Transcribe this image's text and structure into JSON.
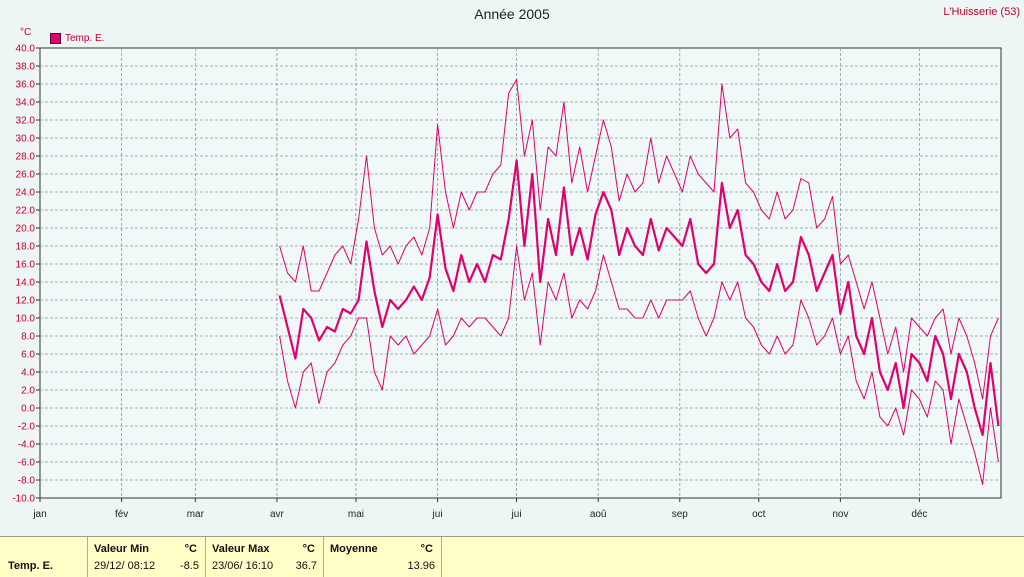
{
  "title": "Année 2005",
  "station": "L'Huisserie (53)",
  "unit": "°C",
  "legend": [
    {
      "name": "Temp. E.",
      "color": "#e0006e"
    }
  ],
  "chart_data": {
    "type": "line",
    "title": "Année 2005",
    "ylabel": "°C",
    "ylim": [
      -10,
      40
    ],
    "ytick_step": 2,
    "xlim": [
      0,
      365
    ],
    "grid": true,
    "legend_position": "top-left",
    "x_ticks": [
      {
        "label": "jan",
        "day": 0
      },
      {
        "label": "fév",
        "day": 31
      },
      {
        "label": "mar",
        "day": 59
      },
      {
        "label": "avr",
        "day": 90
      },
      {
        "label": "mai",
        "day": 120
      },
      {
        "label": "jui",
        "day": 151
      },
      {
        "label": "jui",
        "day": 181
      },
      {
        "label": "aoû",
        "day": 212
      },
      {
        "label": "sep",
        "day": 243
      },
      {
        "label": "oct",
        "day": 273
      },
      {
        "label": "nov",
        "day": 304
      },
      {
        "label": "déc",
        "day": 334
      }
    ],
    "series": [
      {
        "name": "Temp. E.",
        "role": "mean",
        "color": "#e0006e",
        "x": [
          91,
          94,
          97,
          100,
          103,
          106,
          109,
          112,
          115,
          118,
          121,
          124,
          127,
          130,
          133,
          136,
          139,
          142,
          145,
          148,
          151,
          154,
          157,
          160,
          163,
          166,
          169,
          172,
          175,
          178,
          181,
          184,
          187,
          190,
          193,
          196,
          199,
          202,
          205,
          208,
          211,
          214,
          217,
          220,
          223,
          226,
          229,
          232,
          235,
          238,
          241,
          244,
          247,
          250,
          253,
          256,
          259,
          262,
          265,
          268,
          271,
          274,
          277,
          280,
          283,
          286,
          289,
          292,
          295,
          298,
          301,
          304,
          307,
          310,
          313,
          316,
          319,
          322,
          325,
          328,
          331,
          334,
          337,
          340,
          343,
          346,
          349,
          352,
          355,
          358,
          361,
          364
        ],
        "y": [
          12.5,
          9,
          5.5,
          11,
          10,
          7.5,
          9,
          8.5,
          11,
          10.5,
          12,
          18.5,
          13,
          9,
          12,
          11,
          12,
          13.5,
          12,
          14.5,
          21.5,
          15.5,
          13,
          17,
          14,
          16,
          14,
          17,
          16.5,
          21,
          27.5,
          18,
          26,
          14,
          21,
          17,
          24.5,
          17,
          20,
          16.5,
          21.5,
          24,
          22,
          17,
          20,
          18,
          17,
          21,
          17.5,
          20,
          19,
          18,
          21,
          16,
          15,
          16,
          25,
          20,
          22,
          17,
          16,
          14,
          13,
          16,
          13,
          14,
          19,
          17,
          13,
          15,
          17,
          10.5,
          14,
          8,
          6,
          10,
          4,
          2,
          5,
          0,
          6,
          5,
          3,
          8,
          6,
          1,
          6,
          4,
          0,
          -3,
          5,
          -2
        ]
      },
      {
        "name": "",
        "role": "max",
        "color": "#e0006e",
        "x": [
          91,
          94,
          97,
          100,
          103,
          106,
          109,
          112,
          115,
          118,
          121,
          124,
          127,
          130,
          133,
          136,
          139,
          142,
          145,
          148,
          151,
          154,
          157,
          160,
          163,
          166,
          169,
          172,
          175,
          178,
          181,
          184,
          187,
          190,
          193,
          196,
          199,
          202,
          205,
          208,
          211,
          214,
          217,
          220,
          223,
          226,
          229,
          232,
          235,
          238,
          241,
          244,
          247,
          250,
          253,
          256,
          259,
          262,
          265,
          268,
          271,
          274,
          277,
          280,
          283,
          286,
          289,
          292,
          295,
          298,
          301,
          304,
          307,
          310,
          313,
          316,
          319,
          322,
          325,
          328,
          331,
          334,
          337,
          340,
          343,
          346,
          349,
          352,
          355,
          358,
          361,
          364
        ],
        "y": [
          18,
          15,
          14,
          18,
          13,
          13,
          15,
          17,
          18,
          16,
          21,
          28,
          20,
          17,
          18,
          16,
          18,
          19,
          17,
          20,
          31.5,
          24,
          20,
          24,
          22,
          24,
          24,
          26,
          27,
          35,
          36.5,
          28,
          32,
          22,
          29,
          28,
          34,
          25,
          29,
          24,
          28,
          32,
          29,
          23,
          26,
          24,
          25,
          30,
          25,
          28,
          26,
          24,
          28,
          26,
          25,
          24,
          36,
          30,
          31,
          25,
          24,
          22,
          21,
          24,
          21,
          22,
          25.5,
          25,
          20,
          21,
          23.5,
          16,
          17,
          14,
          11,
          14,
          10,
          6,
          9,
          4,
          10,
          9,
          8,
          10,
          11,
          6,
          10,
          8,
          5,
          1,
          8,
          10
        ]
      },
      {
        "name": "",
        "role": "min",
        "color": "#e0006e",
        "x": [
          91,
          94,
          97,
          100,
          103,
          106,
          109,
          112,
          115,
          118,
          121,
          124,
          127,
          130,
          133,
          136,
          139,
          142,
          145,
          148,
          151,
          154,
          157,
          160,
          163,
          166,
          169,
          172,
          175,
          178,
          181,
          184,
          187,
          190,
          193,
          196,
          199,
          202,
          205,
          208,
          211,
          214,
          217,
          220,
          223,
          226,
          229,
          232,
          235,
          238,
          241,
          244,
          247,
          250,
          253,
          256,
          259,
          262,
          265,
          268,
          271,
          274,
          277,
          280,
          283,
          286,
          289,
          292,
          295,
          298,
          301,
          304,
          307,
          310,
          313,
          316,
          319,
          322,
          325,
          328,
          331,
          334,
          337,
          340,
          343,
          346,
          349,
          352,
          355,
          358,
          361,
          364
        ],
        "y": [
          8,
          3,
          0,
          4,
          5,
          0.5,
          4,
          5,
          7,
          8,
          10,
          10,
          4,
          2,
          8,
          7,
          8,
          6,
          7,
          8,
          11,
          7,
          8,
          10,
          9,
          10,
          10,
          9,
          8,
          10,
          18,
          12,
          15,
          7,
          14,
          12,
          15,
          10,
          12,
          11,
          13,
          17,
          14,
          11,
          11,
          10,
          10,
          12,
          10,
          12,
          12,
          12,
          13,
          10,
          8,
          10,
          14,
          12,
          14,
          10,
          9,
          7,
          6,
          8,
          6,
          7,
          12,
          10,
          7,
          8,
          10,
          6,
          8,
          3,
          1,
          4,
          -1,
          -2,
          0,
          -3,
          2,
          1,
          -1,
          3,
          2,
          -4,
          1,
          -2,
          -5,
          -8.5,
          0,
          -6
        ]
      }
    ]
  },
  "stats": {
    "series_name": "Temp. E.",
    "min": {
      "header": "Valeur Min",
      "unit": "°C",
      "date": "29/12/  08:12",
      "value": "-8.5"
    },
    "max": {
      "header": "Valeur Max",
      "unit": "°C",
      "date": "23/06/  16:10",
      "value": "36.7"
    },
    "mean": {
      "header": "Moyenne",
      "unit": "°C",
      "value": "13.96"
    }
  }
}
